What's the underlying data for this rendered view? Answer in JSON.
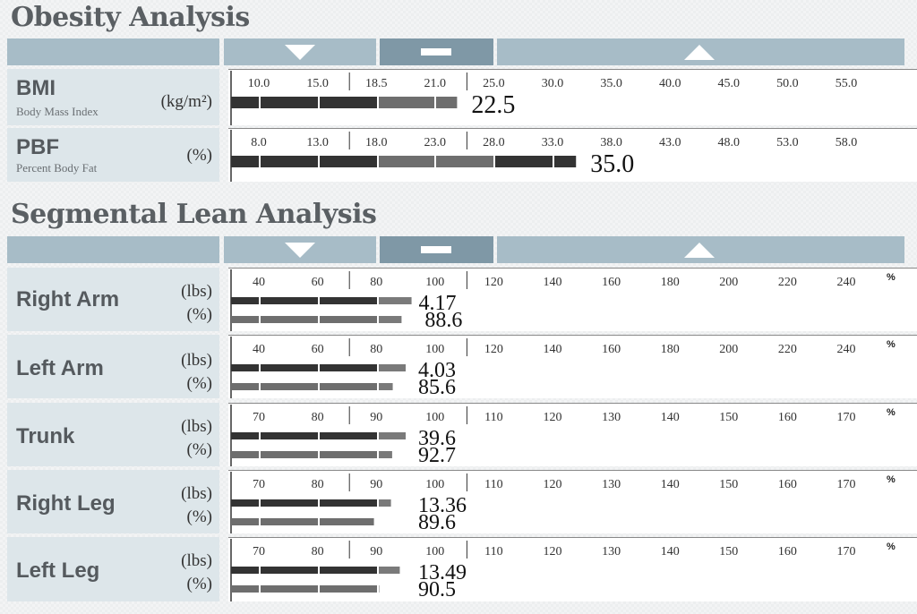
{
  "obesity": {
    "title": "Obesity Analysis",
    "header_icons": [
      "triangle-down-icon",
      "dash-icon",
      "triangle-up-icon"
    ]
  },
  "segmental": {
    "title": "Segmental Lean Analysis",
    "header_icons": [
      "triangle-down-icon",
      "dash-icon",
      "triangle-up-icon"
    ]
  },
  "chart_data": [
    {
      "type": "bar",
      "id": "bmi",
      "label": "BMI",
      "sublabel": "Body Mass Index",
      "unit": "(kg/m²)",
      "ticks": [
        "10.0",
        "15.0",
        "18.5",
        "21.0",
        "25.0",
        "30.0",
        "35.0",
        "40.0",
        "45.0",
        "50.0",
        "55.0"
      ],
      "series": [
        {
          "value": 22.5,
          "label": "22.5"
        }
      ]
    },
    {
      "type": "bar",
      "id": "pbf",
      "label": "PBF",
      "sublabel": "Percent Body Fat",
      "unit": "(%)",
      "ticks": [
        "8.0",
        "13.0",
        "18.0",
        "23.0",
        "28.0",
        "33.0",
        "38.0",
        "43.0",
        "48.0",
        "53.0",
        "58.0"
      ],
      "series": [
        {
          "value": 35.0,
          "label": "35.0"
        }
      ]
    },
    {
      "type": "bar",
      "id": "right-arm",
      "label": "Right Arm",
      "units": [
        "(lbs)",
        "(%)"
      ],
      "ticks": [
        "40",
        "60",
        "80",
        "100",
        "120",
        "140",
        "160",
        "180",
        "200",
        "220",
        "240"
      ],
      "percent_mark": "%",
      "series": [
        {
          "value": 4.17,
          "label": "4.17",
          "percent": 92.0
        },
        {
          "value": 88.6,
          "label": "88.6",
          "percent": 88.6
        }
      ]
    },
    {
      "type": "bar",
      "id": "left-arm",
      "label": "Left Arm",
      "units": [
        "(lbs)",
        "(%)"
      ],
      "ticks": [
        "40",
        "60",
        "80",
        "100",
        "120",
        "140",
        "160",
        "180",
        "200",
        "220",
        "240"
      ],
      "percent_mark": "%",
      "series": [
        {
          "value": 4.03,
          "label": "4.03",
          "percent": 90.0
        },
        {
          "value": 85.6,
          "label": "85.6",
          "percent": 85.6
        }
      ]
    },
    {
      "type": "bar",
      "id": "trunk",
      "label": "Trunk",
      "units": [
        "(lbs)",
        "(%)"
      ],
      "ticks": [
        "70",
        "80",
        "90",
        "100",
        "110",
        "120",
        "130",
        "140",
        "150",
        "160",
        "170"
      ],
      "percent_mark": "%",
      "series": [
        {
          "value": 39.6,
          "label": "39.6",
          "percent": 95.0
        },
        {
          "value": 92.7,
          "label": "92.7",
          "percent": 92.7
        }
      ]
    },
    {
      "type": "bar",
      "id": "right-leg",
      "label": "Right Leg",
      "units": [
        "(lbs)",
        "(%)"
      ],
      "ticks": [
        "70",
        "80",
        "90",
        "100",
        "110",
        "120",
        "130",
        "140",
        "150",
        "160",
        "170"
      ],
      "percent_mark": "%",
      "series": [
        {
          "value": 13.36,
          "label": "13.36",
          "percent": 92.5
        },
        {
          "value": 89.6,
          "label": "89.6",
          "percent": 89.6
        }
      ]
    },
    {
      "type": "bar",
      "id": "left-leg",
      "label": "Left Leg",
      "units": [
        "(lbs)",
        "(%)"
      ],
      "ticks": [
        "70",
        "80",
        "90",
        "100",
        "110",
        "120",
        "130",
        "140",
        "150",
        "160",
        "170"
      ],
      "percent_mark": "%",
      "series": [
        {
          "value": 13.49,
          "label": "13.49",
          "percent": 94.0
        },
        {
          "value": 90.5,
          "label": "90.5",
          "percent": 90.5
        }
      ]
    }
  ]
}
